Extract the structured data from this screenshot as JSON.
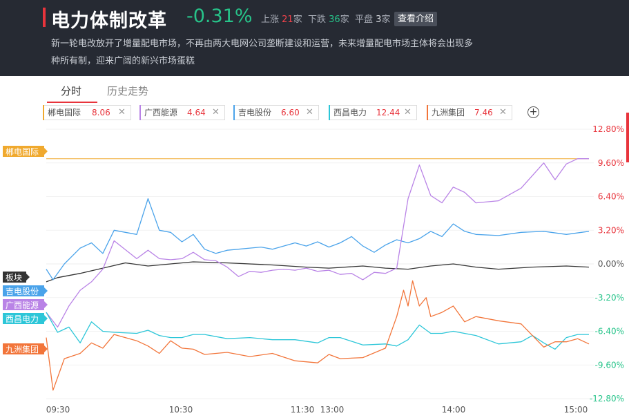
{
  "header": {
    "title": "电力体制改革",
    "change": "-0.31%",
    "up_label": "上涨",
    "up_count": "21",
    "down_label": "下跌",
    "down_count": "36",
    "flat_label": "平盘",
    "flat_count": "3",
    "unit": "家",
    "intro_button": "查看介绍",
    "description": "新一轮电改放开了增量配电市场，不再由两大电网公司垄断建设和运营，未来增量配电市场主体将会出现多种所有制，迎来广阔的新兴市场蛋糕"
  },
  "tabs": {
    "minute": "分时",
    "history": "历史走势"
  },
  "stocks": [
    {
      "name": "郴电国际",
      "value": "8.06",
      "color": "#f0a92e"
    },
    {
      "name": "广西能源",
      "value": "4.64",
      "color": "#b983e6"
    },
    {
      "name": "吉电股份",
      "value": "6.60",
      "color": "#4aa3ea"
    },
    {
      "name": "西昌电力",
      "value": "12.44",
      "color": "#2cc6d8"
    },
    {
      "name": "九洲集团",
      "value": "7.46",
      "color": "#f2753a"
    }
  ],
  "add_icon": "+",
  "chart_data": {
    "type": "line",
    "y_unit": "%",
    "ylim": [
      -12.8,
      12.8
    ],
    "y_ticks": [
      "12.80%",
      "9.60%",
      "6.40%",
      "3.20%",
      "0.00%",
      "-3.20%",
      "-6.40%",
      "-9.60%",
      "-12.80%"
    ],
    "x_ticks": [
      "09:30",
      "10:30",
      "11:30",
      "13:00",
      "14:00",
      "15:00"
    ],
    "x_minutes": [
      0,
      60,
      120,
      120,
      180,
      240
    ],
    "x_range_minutes": [
      0,
      240
    ],
    "grid": "horizontal",
    "series": [
      {
        "name": "郴电国际",
        "color": "#f0a92e",
        "x": [
          0,
          240
        ],
        "y": [
          10.0,
          10.0
        ]
      },
      {
        "name": "板块",
        "color": "#333333",
        "x": [
          0,
          5,
          15,
          25,
          35,
          45,
          55,
          65,
          80,
          100,
          115,
          125,
          140,
          150,
          160,
          170,
          180,
          190,
          200,
          215,
          230,
          240
        ],
        "y": [
          -1.7,
          -1.3,
          -0.9,
          -0.4,
          0.1,
          -0.2,
          0.0,
          0.2,
          0.1,
          -0.1,
          -0.3,
          -0.4,
          -0.2,
          -0.4,
          -0.5,
          -0.2,
          0.0,
          -0.3,
          -0.5,
          -0.3,
          -0.2,
          -0.3
        ]
      },
      {
        "name": "吉电股份",
        "color": "#4aa3ea",
        "x": [
          0,
          3,
          8,
          15,
          20,
          25,
          30,
          40,
          45,
          50,
          55,
          60,
          65,
          70,
          75,
          80,
          85,
          90,
          95,
          100,
          105,
          110,
          115,
          120,
          125,
          130,
          135,
          140,
          145,
          150,
          155,
          160,
          165,
          170,
          175,
          180,
          185,
          190,
          200,
          210,
          220,
          230,
          240
        ],
        "y": [
          -0.5,
          -1.5,
          0.0,
          1.5,
          2.0,
          1.0,
          3.2,
          2.8,
          6.2,
          3.2,
          3.0,
          2.1,
          2.8,
          1.4,
          1.0,
          1.3,
          1.4,
          1.5,
          1.6,
          1.4,
          1.7,
          2.0,
          1.7,
          2.1,
          1.6,
          2.0,
          2.6,
          1.7,
          1.1,
          1.8,
          2.3,
          2.0,
          2.4,
          3.1,
          2.6,
          3.8,
          3.1,
          2.8,
          2.7,
          3.0,
          3.1,
          2.8,
          3.1
        ]
      },
      {
        "name": "广西能源",
        "color": "#b983e6",
        "x": [
          0,
          5,
          10,
          15,
          20,
          25,
          30,
          40,
          45,
          50,
          55,
          60,
          65,
          70,
          75,
          80,
          85,
          90,
          95,
          100,
          105,
          110,
          115,
          120,
          125,
          130,
          135,
          140,
          145,
          150,
          155,
          160,
          165,
          170,
          175,
          180,
          185,
          190,
          200,
          210,
          220,
          225,
          230,
          235,
          240
        ],
        "y": [
          -4.6,
          -6.0,
          -4.0,
          -2.5,
          -1.7,
          -0.5,
          2.2,
          0.5,
          1.3,
          0.5,
          0.4,
          0.5,
          1.1,
          0.4,
          0.3,
          -0.3,
          -1.2,
          -0.7,
          -0.8,
          -0.6,
          -0.5,
          -0.6,
          -0.4,
          -0.7,
          -0.6,
          -1.0,
          -0.9,
          -1.5,
          -0.8,
          -0.9,
          -0.4,
          6.2,
          9.4,
          6.5,
          5.8,
          7.3,
          6.8,
          5.8,
          6.0,
          7.2,
          9.6,
          8.0,
          9.5,
          10.0,
          10.0
        ]
      },
      {
        "name": "西昌电力",
        "color": "#2cc6d8",
        "x": [
          0,
          5,
          10,
          15,
          20,
          25,
          30,
          40,
          45,
          50,
          55,
          60,
          65,
          70,
          80,
          90,
          100,
          110,
          120,
          125,
          130,
          140,
          150,
          155,
          160,
          165,
          170,
          175,
          180,
          190,
          200,
          210,
          215,
          220,
          225,
          230,
          235,
          240
        ],
        "y": [
          -4.6,
          -6.5,
          -6.0,
          -7.5,
          -5.5,
          -6.4,
          -6.5,
          -6.6,
          -6.3,
          -6.8,
          -7.0,
          -7.0,
          -6.7,
          -6.7,
          -7.1,
          -7.0,
          -7.2,
          -7.2,
          -7.5,
          -7.0,
          -7.0,
          -7.7,
          -7.6,
          -7.8,
          -7.2,
          -5.8,
          -6.6,
          -6.6,
          -6.4,
          -6.8,
          -7.6,
          -7.4,
          -6.8,
          -7.5,
          -8.1,
          -7.0,
          -6.7,
          -6.7
        ]
      },
      {
        "name": "九洲集团",
        "color": "#f2753a",
        "x": [
          0,
          3,
          8,
          15,
          20,
          25,
          30,
          40,
          45,
          50,
          55,
          60,
          65,
          70,
          80,
          90,
          100,
          110,
          120,
          125,
          130,
          140,
          150,
          155,
          158,
          160,
          162,
          165,
          168,
          170,
          175,
          180,
          185,
          190,
          200,
          210,
          215,
          220,
          225,
          230,
          235,
          240
        ],
        "y": [
          -7.0,
          -12.0,
          -9.0,
          -8.5,
          -7.5,
          -8.0,
          -6.7,
          -7.3,
          -7.8,
          -8.5,
          -7.3,
          -8.0,
          -8.1,
          -8.6,
          -8.4,
          -8.8,
          -8.5,
          -9.2,
          -9.4,
          -8.6,
          -9.0,
          -8.9,
          -8.0,
          -5.0,
          -2.5,
          -4.0,
          -1.6,
          -4.0,
          -3.2,
          -5.0,
          -4.6,
          -4.0,
          -5.5,
          -5.0,
          -5.4,
          -5.7,
          -6.8,
          -7.9,
          -7.4,
          -7.4,
          -7.1,
          -7.6
        ]
      }
    ]
  },
  "colors": {
    "header_bg": "#262a33",
    "accent": "#e8343c",
    "up": "#e8343c",
    "down": "#27c48a"
  }
}
